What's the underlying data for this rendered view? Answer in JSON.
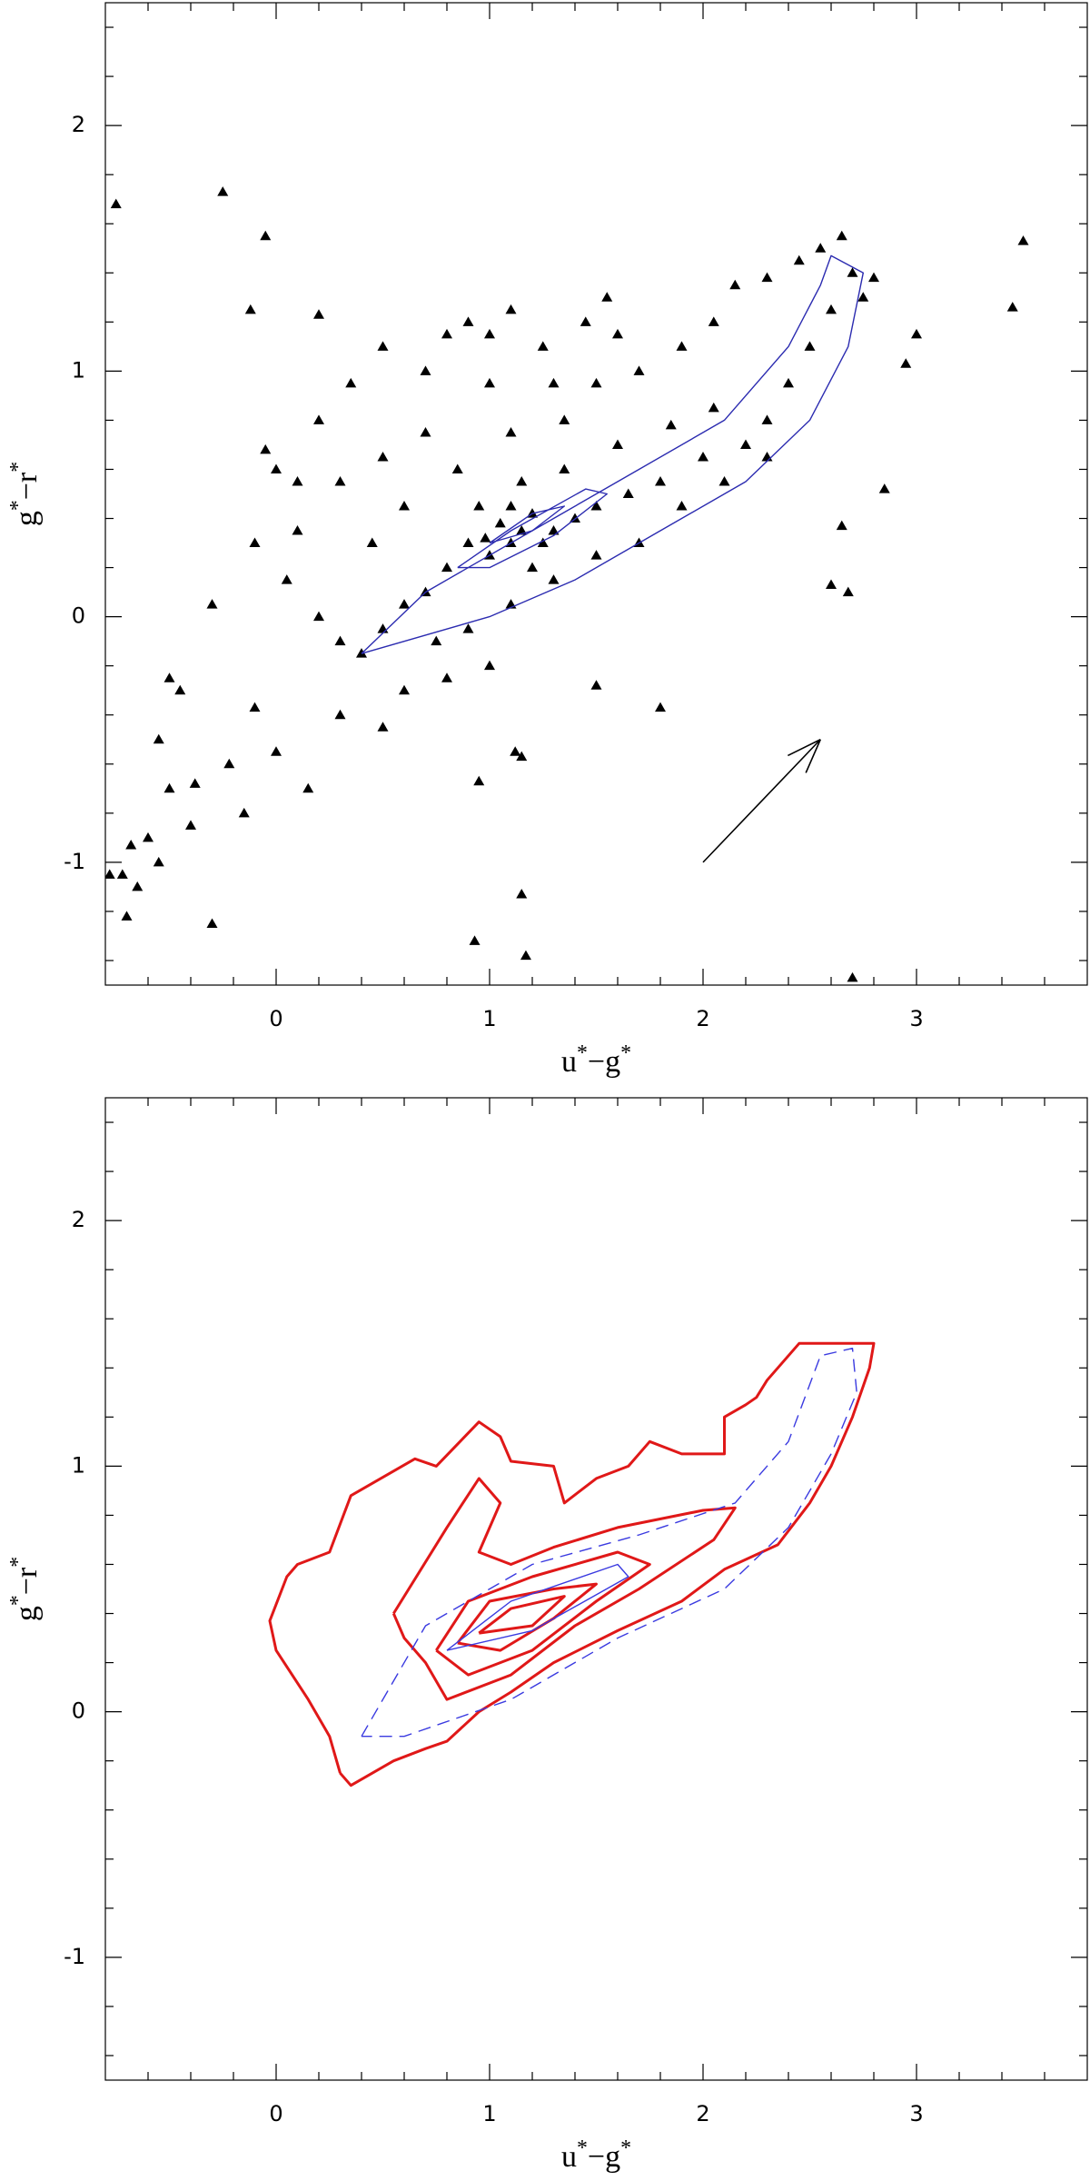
{
  "chart_data": [
    {
      "type": "scatter",
      "xlabel": "u*−g*",
      "ylabel": "g*−r*",
      "xlim": [
        -0.8,
        3.8
      ],
      "ylim": [
        -1.5,
        2.5
      ],
      "xticks": [
        0,
        1,
        2,
        3
      ],
      "yticks": [
        -1,
        0,
        1,
        2
      ],
      "xminorticks": [
        -0.6,
        -0.4,
        -0.2,
        0.2,
        0.4,
        0.6,
        0.8,
        1.2,
        1.4,
        1.6,
        1.8,
        2.2,
        2.4,
        2.6,
        2.8,
        3.2,
        3.4,
        3.6
      ],
      "yminorticks": [
        -1.4,
        -1.2,
        -0.8,
        -0.6,
        -0.4,
        -0.2,
        0.2,
        0.4,
        0.6,
        0.8,
        1.2,
        1.4,
        1.6,
        1.8,
        2.2,
        2.4
      ],
      "points": {
        "color": "#000000",
        "x": [
          -0.75,
          -0.25,
          -0.05,
          0.2,
          -0.12,
          3.5,
          3.45,
          3.0,
          2.95,
          2.85,
          2.65,
          2.6,
          2.68,
          1.8,
          1.5,
          1.15,
          1.12,
          0.95,
          1.15,
          0.93,
          1.17,
          2.7,
          -0.3,
          -0.5,
          -0.45,
          -0.55,
          -0.6,
          -0.65,
          -0.72,
          -0.78,
          -0.55,
          -0.4,
          -0.38,
          -0.5,
          -0.68,
          -0.7,
          -0.22,
          -0.15,
          -0.1,
          0.15,
          0.0,
          -0.3,
          -0.05,
          0.0,
          0.1,
          0.2,
          0.35,
          0.5,
          0.7,
          0.8,
          0.9,
          1.0,
          1.1,
          1.25,
          1.45,
          1.55,
          1.6,
          1.3,
          1.0,
          0.7,
          0.5,
          0.3,
          0.1,
          -0.1,
          0.05,
          0.2,
          0.3,
          0.45,
          0.6,
          0.85,
          1.1,
          1.35,
          1.5,
          1.7,
          1.9,
          2.05,
          2.15,
          2.3,
          2.45,
          2.55,
          2.65,
          2.7,
          2.8,
          2.75,
          2.6,
          2.5,
          2.4,
          2.3,
          2.2,
          2.0,
          1.8,
          1.65,
          1.5,
          1.4,
          1.3,
          1.2,
          1.1,
          1.0,
          0.9,
          0.8,
          0.7,
          0.6,
          0.5,
          0.4,
          0.75,
          0.9,
          1.1,
          1.3,
          1.5,
          1.7,
          1.9,
          2.1,
          2.3,
          1.0,
          0.8,
          0.6,
          0.3,
          0.5,
          0.95,
          1.15,
          1.35,
          1.6,
          1.85,
          2.05,
          1.2,
          1.05,
          1.15,
          1.25,
          0.98,
          1.1
        ],
        "y": [
          1.68,
          1.73,
          1.55,
          1.23,
          1.25,
          1.53,
          1.26,
          1.15,
          1.03,
          0.52,
          0.37,
          0.13,
          0.1,
          -0.37,
          -0.28,
          -0.57,
          -0.55,
          -0.67,
          -1.13,
          -1.32,
          -1.38,
          -1.47,
          -1.25,
          -0.25,
          -0.3,
          -0.5,
          -0.9,
          -1.1,
          -1.05,
          -1.05,
          -1.0,
          -0.85,
          -0.68,
          -0.7,
          -0.93,
          -1.22,
          -0.6,
          -0.8,
          -0.37,
          -0.7,
          -0.55,
          0.05,
          0.68,
          0.6,
          0.55,
          0.8,
          0.95,
          1.1,
          1.0,
          1.15,
          1.2,
          1.15,
          1.25,
          1.1,
          1.2,
          1.3,
          1.15,
          0.95,
          0.95,
          0.75,
          0.65,
          0.55,
          0.35,
          0.3,
          0.15,
          0.0,
          -0.1,
          0.3,
          0.45,
          0.6,
          0.75,
          0.8,
          0.95,
          1.0,
          1.1,
          1.2,
          1.35,
          1.38,
          1.45,
          1.5,
          1.55,
          1.4,
          1.38,
          1.3,
          1.25,
          1.1,
          0.95,
          0.8,
          0.7,
          0.65,
          0.55,
          0.5,
          0.45,
          0.4,
          0.35,
          0.42,
          0.3,
          0.25,
          0.3,
          0.2,
          0.1,
          0.05,
          -0.05,
          -0.15,
          -0.1,
          -0.05,
          0.05,
          0.15,
          0.25,
          0.3,
          0.45,
          0.55,
          0.65,
          -0.2,
          -0.25,
          -0.3,
          -0.4,
          -0.45,
          0.45,
          0.55,
          0.6,
          0.7,
          0.78,
          0.85,
          0.2,
          0.38,
          0.35,
          0.3,
          0.32,
          0.45
        ]
      },
      "series": [
        {
          "color": "#2b2bb0",
          "x": [
            0.4,
            0.7,
            1.2,
            1.7,
            2.1,
            2.4,
            2.55,
            2.6,
            2.75,
            2.68,
            2.5,
            2.2,
            1.8,
            1.4,
            1.0,
            0.6,
            0.4
          ],
          "y": [
            -0.15,
            0.1,
            0.35,
            0.6,
            0.8,
            1.1,
            1.35,
            1.47,
            1.4,
            1.1,
            0.8,
            0.55,
            0.35,
            0.15,
            0.0,
            -0.1,
            -0.15
          ]
        },
        {
          "color": "#2b2bb0",
          "x": [
            0.85,
            1.1,
            1.45,
            1.55,
            1.3,
            1.0,
            0.85
          ],
          "y": [
            0.2,
            0.35,
            0.52,
            0.5,
            0.33,
            0.2,
            0.2
          ]
        },
        {
          "color": "#2b2bb0",
          "x": [
            1.0,
            1.2,
            1.35,
            1.2,
            1.0
          ],
          "y": [
            0.3,
            0.42,
            0.45,
            0.35,
            0.3
          ]
        }
      ],
      "arrow": {
        "x": [
          2.0,
          2.55
        ],
        "y": [
          -1.0,
          -0.5
        ]
      }
    },
    {
      "type": "contour",
      "xlabel": "u*−g*",
      "ylabel": "g*−r*",
      "xlim": [
        -0.8,
        3.8
      ],
      "ylim": [
        -1.5,
        2.5
      ],
      "xticks": [
        0,
        1,
        2,
        3
      ],
      "yticks": [
        -1,
        0,
        1,
        2
      ],
      "xminorticks": [
        -0.6,
        -0.4,
        -0.2,
        0.2,
        0.4,
        0.6,
        0.8,
        1.2,
        1.4,
        1.6,
        1.8,
        2.2,
        2.4,
        2.6,
        2.8,
        3.2,
        3.4,
        3.6
      ],
      "yminorticks": [
        -1.4,
        -1.2,
        -0.8,
        -0.6,
        -0.4,
        -0.2,
        0.2,
        0.4,
        0.6,
        0.8,
        1.2,
        1.4,
        1.6,
        1.8,
        2.2,
        2.4
      ],
      "series": [
        {
          "color": "#e01818",
          "x": [
            0.3,
            0.25,
            0.15,
            0.0,
            -0.03,
            0.05,
            0.1,
            0.25,
            0.35,
            0.55,
            0.65,
            0.75,
            0.95,
            1.05,
            1.1,
            1.3,
            1.35,
            1.5,
            1.65,
            1.75,
            1.9,
            2.1,
            2.1,
            2.2,
            2.25,
            2.3,
            2.45,
            2.8,
            2.78,
            2.7,
            2.6,
            2.5,
            2.35,
            2.1,
            1.9,
            1.6,
            1.3,
            1.1,
            0.95,
            0.8,
            0.7,
            0.55,
            0.35,
            0.3
          ],
          "y": [
            -0.25,
            -0.1,
            0.05,
            0.25,
            0.37,
            0.55,
            0.6,
            0.65,
            0.88,
            0.98,
            1.03,
            1.0,
            1.18,
            1.12,
            1.02,
            1.0,
            0.85,
            0.95,
            1.0,
            1.1,
            1.05,
            1.05,
            1.2,
            1.25,
            1.28,
            1.35,
            1.5,
            1.5,
            1.4,
            1.2,
            1.0,
            0.85,
            0.68,
            0.58,
            0.45,
            0.33,
            0.2,
            0.08,
            0.0,
            -0.12,
            -0.15,
            -0.2,
            -0.3,
            -0.25
          ]
        },
        {
          "color": "#e01818",
          "x": [
            0.55,
            0.8,
            0.95,
            1.05,
            0.95,
            1.1,
            1.3,
            1.6,
            2.0,
            2.15,
            2.05,
            1.7,
            1.4,
            1.1,
            0.8,
            0.7,
            0.6,
            0.55
          ],
          "y": [
            0.4,
            0.75,
            0.95,
            0.85,
            0.65,
            0.6,
            0.67,
            0.75,
            0.82,
            0.83,
            0.7,
            0.5,
            0.35,
            0.15,
            0.05,
            0.2,
            0.3,
            0.4
          ]
        },
        {
          "color": "#e01818",
          "x": [
            0.75,
            0.9,
            1.2,
            1.6,
            1.75,
            1.5,
            1.2,
            0.9,
            0.75
          ],
          "y": [
            0.25,
            0.45,
            0.55,
            0.65,
            0.6,
            0.45,
            0.25,
            0.15,
            0.25
          ]
        },
        {
          "color": "#e01818",
          "x": [
            0.85,
            1.0,
            1.3,
            1.5,
            1.3,
            1.05,
            0.85
          ],
          "y": [
            0.28,
            0.45,
            0.5,
            0.52,
            0.38,
            0.25,
            0.28
          ]
        },
        {
          "color": "#e01818",
          "x": [
            0.95,
            1.1,
            1.35,
            1.2,
            0.95
          ],
          "y": [
            0.32,
            0.42,
            0.47,
            0.35,
            0.32
          ]
        },
        {
          "color": "#3a3ae0",
          "dash": true,
          "x": [
            0.4,
            0.7,
            1.2,
            1.7,
            2.15,
            2.4,
            2.55,
            2.7,
            2.72,
            2.6,
            2.4,
            2.1,
            1.6,
            1.1,
            0.6,
            0.4
          ],
          "y": [
            -0.1,
            0.35,
            0.6,
            0.72,
            0.85,
            1.1,
            1.45,
            1.48,
            1.3,
            1.05,
            0.75,
            0.5,
            0.3,
            0.05,
            -0.1,
            -0.1
          ]
        },
        {
          "color": "#3a3ae0",
          "x": [
            0.8,
            1.1,
            1.6,
            1.65,
            1.2,
            0.8
          ],
          "y": [
            0.25,
            0.45,
            0.6,
            0.55,
            0.33,
            0.25
          ]
        }
      ]
    }
  ]
}
